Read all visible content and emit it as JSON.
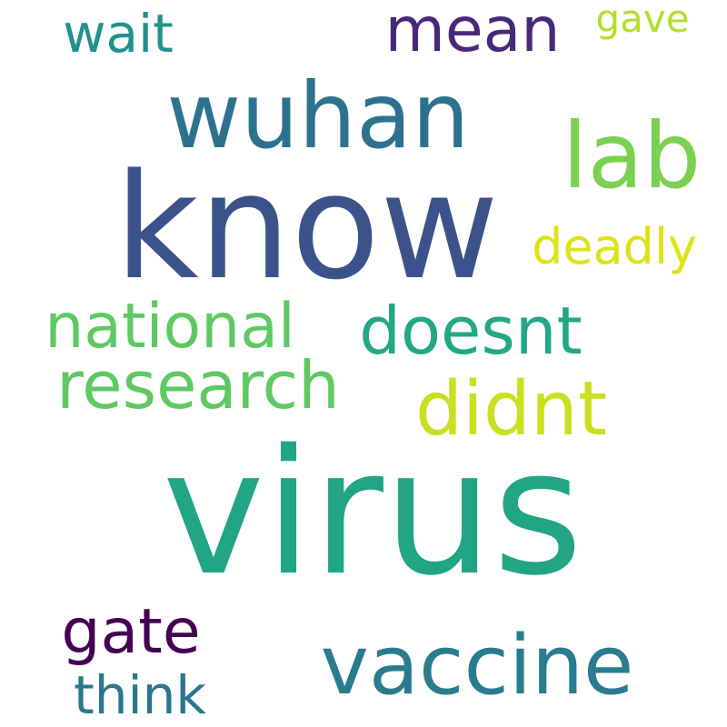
{
  "words": [
    {
      "key": "virus",
      "text": "virus",
      "color": "#21a585"
    },
    {
      "key": "know",
      "text": "know",
      "color": "#3b528b"
    },
    {
      "key": "wuhan",
      "text": "wuhan",
      "color": "#2c728e"
    },
    {
      "key": "vaccine",
      "text": "vaccine",
      "color": "#287c8e"
    },
    {
      "key": "lab",
      "text": "lab",
      "color": "#7ad151"
    },
    {
      "key": "mean",
      "text": "mean",
      "color": "#482878"
    },
    {
      "key": "didnt",
      "text": "didnt",
      "color": "#c8e020"
    },
    {
      "key": "research",
      "text": "research",
      "color": "#5ec962"
    },
    {
      "key": "doesnt",
      "text": "doesnt",
      "color": "#22a884"
    },
    {
      "key": "national",
      "text": "national",
      "color": "#5ec962"
    },
    {
      "key": "deadly",
      "text": "deadly",
      "color": "#dde318"
    },
    {
      "key": "gate",
      "text": "gate",
      "color": "#440154"
    },
    {
      "key": "think",
      "text": "think",
      "color": "#2a768e"
    },
    {
      "key": "wait",
      "text": "wait",
      "color": "#21918c"
    },
    {
      "key": "gave",
      "text": "gave",
      "color": "#b5de2b"
    }
  ]
}
